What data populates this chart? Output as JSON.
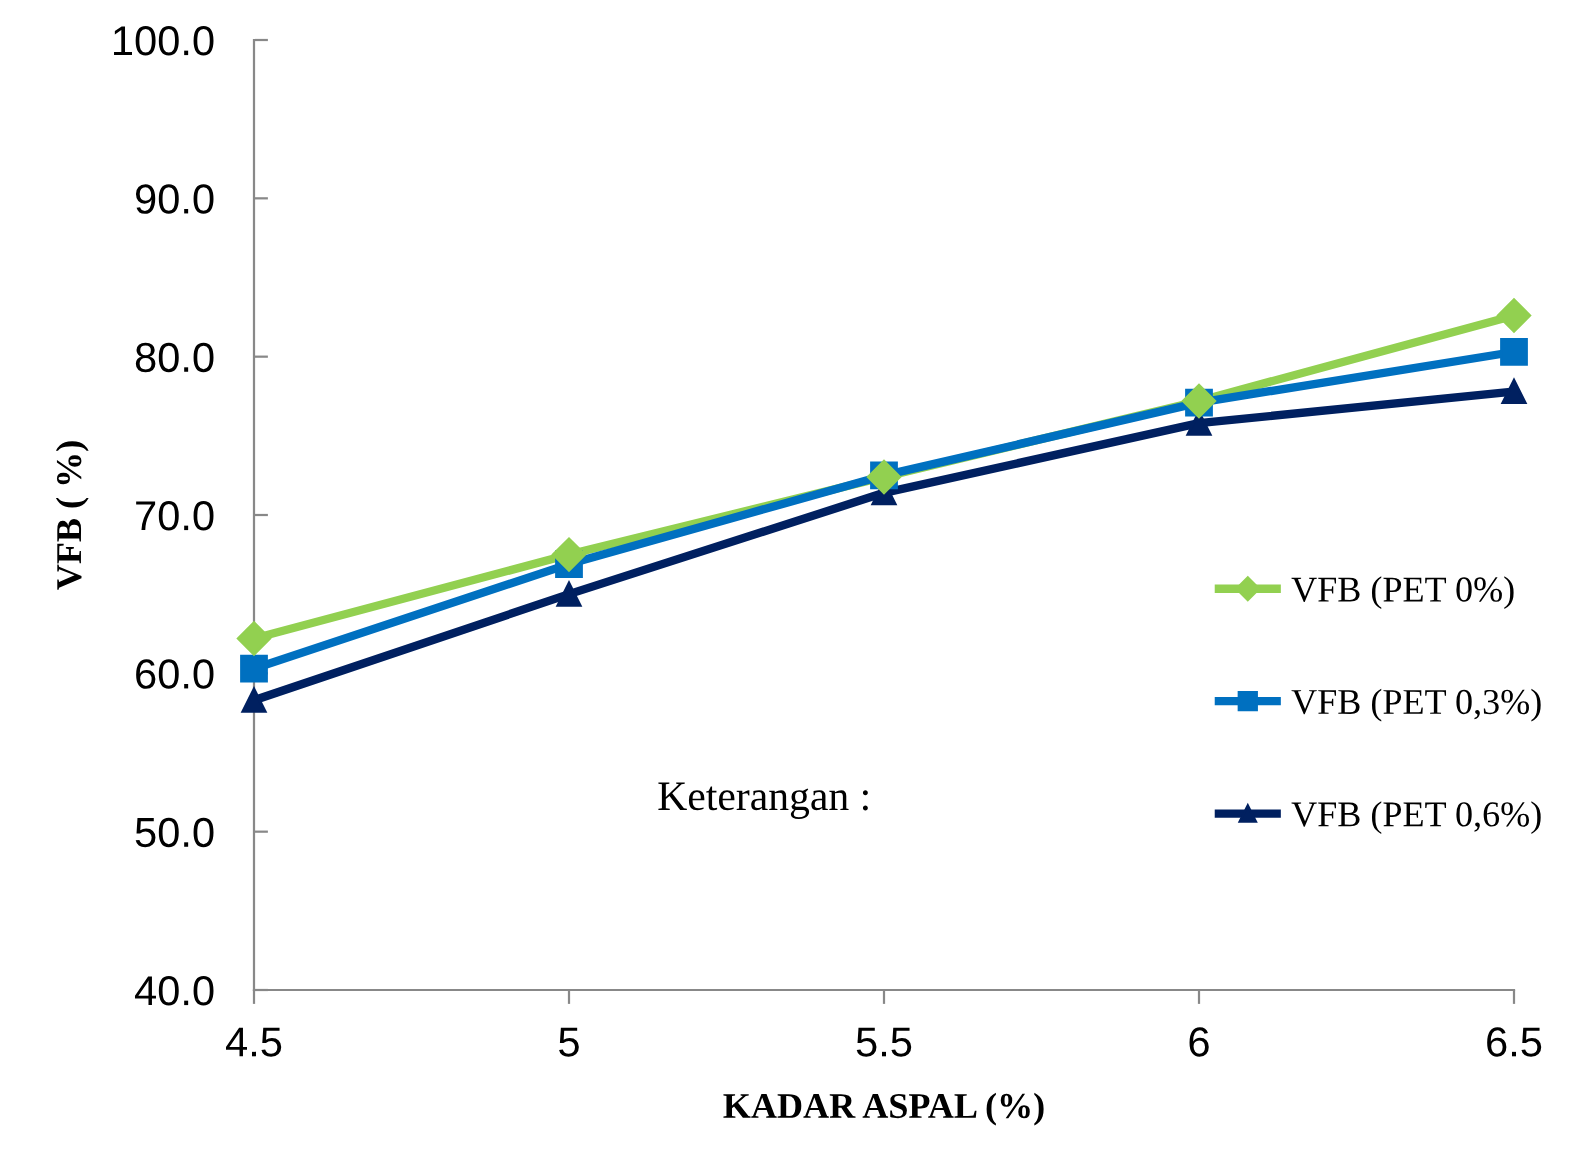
{
  "chart_data": {
    "type": "line",
    "xlabel": "KADAR ASPAL (%)",
    "ylabel": "VFB ( %)",
    "x": [
      4.5,
      5,
      5.5,
      6,
      6.5
    ],
    "series": [
      {
        "name": "VFB (PET 0%)",
        "color": "#92d050",
        "marker": "diamond",
        "values": [
          62.2,
          67.5,
          72.4,
          77.2,
          82.6
        ]
      },
      {
        "name": "VFB (PET 0,3%)",
        "color": "#0070c0",
        "marker": "square",
        "values": [
          60.3,
          66.9,
          72.5,
          77.1,
          80.3
        ]
      },
      {
        "name": "VFB (PET 0,6%)",
        "color": "#002060",
        "marker": "triangle",
        "values": [
          58.3,
          65.0,
          71.4,
          75.8,
          77.8
        ]
      }
    ],
    "xlim": [
      4.5,
      6.5
    ],
    "xticks": [
      4.5,
      5,
      5.5,
      6,
      6.5
    ],
    "ylim": [
      40,
      100
    ],
    "yticks": [
      {
        "value": 40,
        "label": "40.0"
      },
      {
        "value": 50,
        "label": "50.0"
      },
      {
        "value": 60,
        "label": "60.0"
      },
      {
        "value": 70,
        "label": "70.0"
      },
      {
        "value": 80,
        "label": "80.0"
      },
      {
        "value": 90,
        "label": "90.0"
      },
      {
        "value": 100,
        "label": "100.0"
      }
    ],
    "grid": false,
    "legend": "right",
    "line_style": "solid",
    "annotations": [
      "Keterangan :"
    ]
  }
}
